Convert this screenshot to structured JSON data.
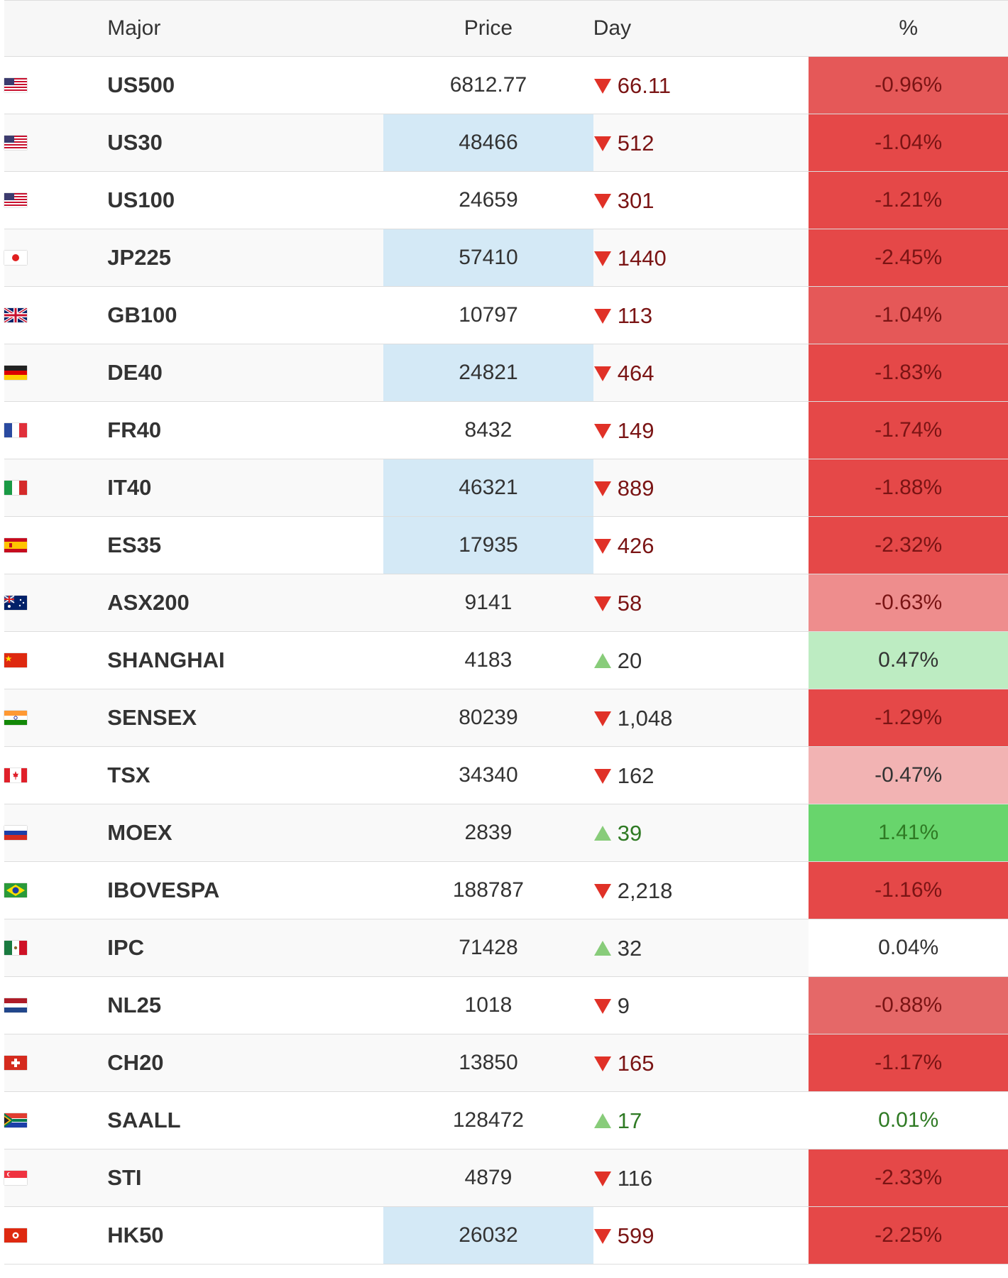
{
  "header": {
    "major": "Major",
    "price": "Price",
    "day": "Day",
    "percent": "%"
  },
  "colors": {
    "down_arrow": "#e03127",
    "up_arrow": "#88cc7a",
    "price_highlight": "#d4e9f6",
    "down_text_dark": "#7a1414",
    "down_text_neutral": "#333333",
    "up_text": "#2f7a24"
  },
  "rows": [
    {
      "flag": "us-flag",
      "name": "US500",
      "price": "6812.77",
      "day": "66.11",
      "dir": "down",
      "pct": "-0.96%",
      "price_hl": false,
      "day_color": "#7a1414",
      "pct_bg": "#e55858",
      "pct_color": "#7a1414"
    },
    {
      "flag": "us-flag",
      "name": "US30",
      "price": "48466",
      "day": "512",
      "dir": "down",
      "pct": "-1.04%",
      "price_hl": true,
      "day_color": "#7a1414",
      "pct_bg": "#e54848",
      "pct_color": "#7a1414"
    },
    {
      "flag": "us-flag",
      "name": "US100",
      "price": "24659",
      "day": "301",
      "dir": "down",
      "pct": "-1.21%",
      "price_hl": false,
      "day_color": "#7a1414",
      "pct_bg": "#e54848",
      "pct_color": "#7a1414"
    },
    {
      "flag": "jp-flag",
      "name": "JP225",
      "price": "57410",
      "day": "1440",
      "dir": "down",
      "pct": "-2.45%",
      "price_hl": true,
      "day_color": "#7a1414",
      "pct_bg": "#e54848",
      "pct_color": "#7a1414"
    },
    {
      "flag": "gb-flag",
      "name": "GB100",
      "price": "10797",
      "day": "113",
      "dir": "down",
      "pct": "-1.04%",
      "price_hl": false,
      "day_color": "#7a1414",
      "pct_bg": "#e55858",
      "pct_color": "#7a1414"
    },
    {
      "flag": "de-flag",
      "name": "DE40",
      "price": "24821",
      "day": "464",
      "dir": "down",
      "pct": "-1.83%",
      "price_hl": true,
      "day_color": "#7a1414",
      "pct_bg": "#e54848",
      "pct_color": "#7a1414"
    },
    {
      "flag": "fr-flag",
      "name": "FR40",
      "price": "8432",
      "day": "149",
      "dir": "down",
      "pct": "-1.74%",
      "price_hl": false,
      "day_color": "#7a1414",
      "pct_bg": "#e54848",
      "pct_color": "#7a1414"
    },
    {
      "flag": "it-flag",
      "name": "IT40",
      "price": "46321",
      "day": "889",
      "dir": "down",
      "pct": "-1.88%",
      "price_hl": true,
      "day_color": "#7a1414",
      "pct_bg": "#e54848",
      "pct_color": "#7a1414"
    },
    {
      "flag": "es-flag",
      "name": "ES35",
      "price": "17935",
      "day": "426",
      "dir": "down",
      "pct": "-2.32%",
      "price_hl": true,
      "day_color": "#7a1414",
      "pct_bg": "#e54848",
      "pct_color": "#7a1414"
    },
    {
      "flag": "au-flag",
      "name": "ASX200",
      "price": "9141",
      "day": "58",
      "dir": "down",
      "pct": "-0.63%",
      "price_hl": false,
      "day_color": "#7a1414",
      "pct_bg": "#ee8d8d",
      "pct_color": "#7a1414"
    },
    {
      "flag": "cn-flag",
      "name": "SHANGHAI",
      "price": "4183",
      "day": "20",
      "dir": "up",
      "pct": "0.47%",
      "price_hl": false,
      "day_color": "#333333",
      "pct_bg": "#bdecc2",
      "pct_color": "#333333"
    },
    {
      "flag": "in-flag",
      "name": "SENSEX",
      "price": "80239",
      "day": "1,048",
      "dir": "down",
      "pct": "-1.29%",
      "price_hl": false,
      "day_color": "#333333",
      "pct_bg": "#e54848",
      "pct_color": "#7a1414"
    },
    {
      "flag": "ca-flag",
      "name": "TSX",
      "price": "34340",
      "day": "162",
      "dir": "down",
      "pct": "-0.47%",
      "price_hl": false,
      "day_color": "#333333",
      "pct_bg": "#f2b3b3",
      "pct_color": "#333333"
    },
    {
      "flag": "ru-flag",
      "name": "MOEX",
      "price": "2839",
      "day": "39",
      "dir": "up",
      "pct": "1.41%",
      "price_hl": false,
      "day_color": "#2f7a24",
      "pct_bg": "#68d56c",
      "pct_color": "#2f7a24"
    },
    {
      "flag": "br-flag",
      "name": "IBOVESPA",
      "price": "188787",
      "day": "2,218",
      "dir": "down",
      "pct": "-1.16%",
      "price_hl": false,
      "day_color": "#333333",
      "pct_bg": "#e54848",
      "pct_color": "#7a1414"
    },
    {
      "flag": "mx-flag",
      "name": "IPC",
      "price": "71428",
      "day": "32",
      "dir": "up",
      "pct": "0.04%",
      "price_hl": false,
      "day_color": "#333333",
      "pct_bg": "#ffffff",
      "pct_color": "#333333"
    },
    {
      "flag": "nl-flag",
      "name": "NL25",
      "price": "1018",
      "day": "9",
      "dir": "down",
      "pct": "-0.88%",
      "price_hl": false,
      "day_color": "#333333",
      "pct_bg": "#e56868",
      "pct_color": "#7a1414"
    },
    {
      "flag": "ch-flag",
      "name": "CH20",
      "price": "13850",
      "day": "165",
      "dir": "down",
      "pct": "-1.17%",
      "price_hl": false,
      "day_color": "#7a1414",
      "pct_bg": "#e54848",
      "pct_color": "#7a1414"
    },
    {
      "flag": "za-flag",
      "name": "SAALL",
      "price": "128472",
      "day": "17",
      "dir": "up",
      "pct": "0.01%",
      "price_hl": false,
      "day_color": "#2f7a24",
      "pct_bg": "#ffffff",
      "pct_color": "#2f7a24"
    },
    {
      "flag": "sg-flag",
      "name": "STI",
      "price": "4879",
      "day": "116",
      "dir": "down",
      "pct": "-2.33%",
      "price_hl": false,
      "day_color": "#333333",
      "pct_bg": "#e54848",
      "pct_color": "#7a1414"
    },
    {
      "flag": "hk-flag",
      "name": "HK50",
      "price": "26032",
      "day": "599",
      "dir": "down",
      "pct": "-2.25%",
      "price_hl": true,
      "day_color": "#7a1414",
      "pct_bg": "#e54848",
      "pct_color": "#7a1414"
    }
  ]
}
